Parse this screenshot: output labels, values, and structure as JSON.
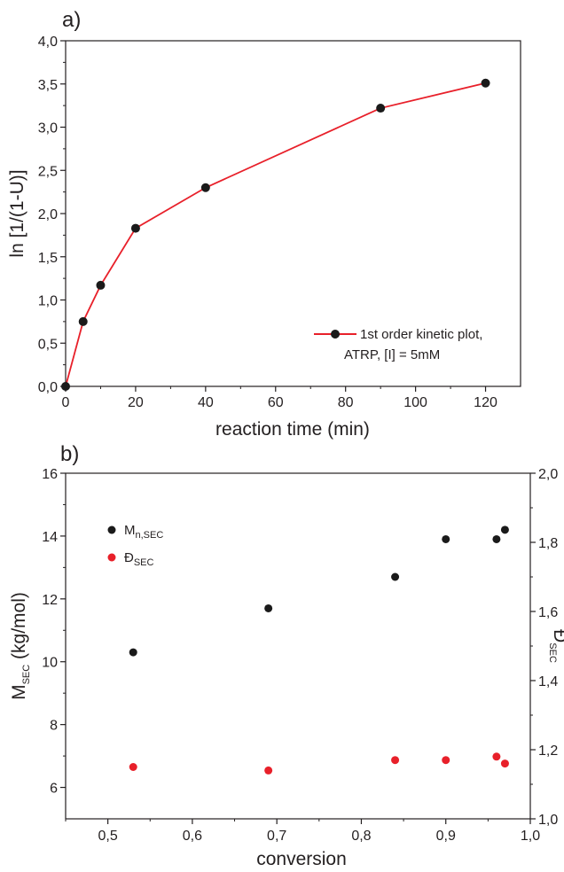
{
  "chart_data": [
    {
      "type": "line",
      "panel_label": "a)",
      "xlabel": "reaction time (min)",
      "ylabel": "ln [1/(1-U)]",
      "xlim": [
        0,
        130
      ],
      "ylim": [
        0,
        4
      ],
      "xticks": [
        "0",
        "20",
        "40",
        "60",
        "80",
        "100",
        "120"
      ],
      "xtick_values": [
        0,
        20,
        40,
        60,
        80,
        100,
        120
      ],
      "yticks": [
        "0,0",
        "0,5",
        "1,0",
        "1,5",
        "2,0",
        "2,5",
        "3,0",
        "3,5",
        "4,0"
      ],
      "ytick_values": [
        0,
        0.5,
        1,
        1.5,
        2,
        2.5,
        3,
        3.5,
        4
      ],
      "grid": false,
      "legend_position": "bottom-right",
      "legend_lines": [
        "1st order kinetic plot,",
        "ATRP, [I] = 5mM"
      ],
      "series": [
        {
          "name": "1st order kinetic plot, ATRP, [I] = 5mM",
          "line_color": "#e8202a",
          "marker_color": "#1a1a1a",
          "x": [
            0,
            5,
            10,
            20,
            40,
            90,
            120
          ],
          "y": [
            0.0,
            0.75,
            1.17,
            1.83,
            2.3,
            3.22,
            3.51
          ]
        }
      ]
    },
    {
      "type": "scatter",
      "panel_label": "b)",
      "xlabel": "conversion",
      "ylabel_left_main": "M",
      "ylabel_left_sub": "SEC",
      "ylabel_left_rest": " (kg/mol)",
      "ylabel_right_main": "Đ",
      "ylabel_right_sub": "SEC",
      "xlim": [
        0.45,
        1.0
      ],
      "ylim_left": [
        5,
        16
      ],
      "ylim_right": [
        1.0,
        2.0
      ],
      "xticks": [
        "0,5",
        "0,6",
        "0,7",
        "0,8",
        "0,9",
        "1,0"
      ],
      "xtick_values": [
        0.5,
        0.6,
        0.7,
        0.8,
        0.9,
        1.0
      ],
      "yticks_left": [
        "6",
        "8",
        "10",
        "12",
        "14",
        "16"
      ],
      "ytick_left_values": [
        6,
        8,
        10,
        12,
        14,
        16
      ],
      "yticks_right": [
        "1,0",
        "1,2",
        "1,4",
        "1,6",
        "1,8",
        "2,0"
      ],
      "ytick_right_values": [
        1.0,
        1.2,
        1.4,
        1.6,
        1.8,
        2.0
      ],
      "grid": false,
      "legend_position": "top-left",
      "series": [
        {
          "name_main": "M",
          "name_sub": "n,SEC",
          "axis": "left",
          "color": "#1a1a1a",
          "x": [
            0.53,
            0.69,
            0.84,
            0.9,
            0.96,
            0.97
          ],
          "y": [
            10.3,
            11.7,
            12.7,
            13.9,
            13.9,
            14.2
          ]
        },
        {
          "name_main": "Đ",
          "name_sub": "SEC",
          "axis": "right",
          "color": "#e8202a",
          "x": [
            0.53,
            0.69,
            0.84,
            0.9,
            0.96,
            0.97
          ],
          "y": [
            1.15,
            1.14,
            1.17,
            1.17,
            1.18,
            1.16
          ]
        }
      ]
    }
  ]
}
